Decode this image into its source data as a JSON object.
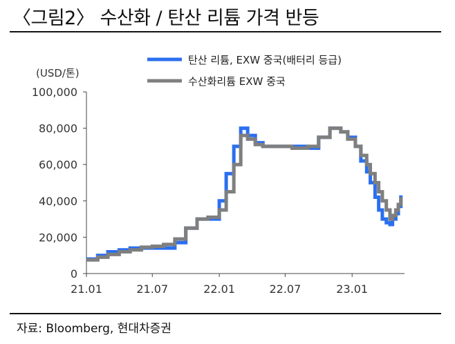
{
  "header": {
    "title": "〈그림2〉 수산화 / 탄산 리튬 가격 반등"
  },
  "footer": {
    "source": "자료: Bloomberg, 현대차증권"
  },
  "chart_data": {
    "type": "line",
    "title": "〈그림2〉 수산화 / 탄산 리튬 가격 반등",
    "ylabel": "(USD/톤)",
    "xlabel": "",
    "ylim": [
      0,
      100000
    ],
    "yticks": [
      "100,000",
      "80,000",
      "60,000",
      "40,000",
      "20,000",
      "0"
    ],
    "yticks_values": [
      100000,
      80000,
      60000,
      40000,
      20000,
      0
    ],
    "xticks": [
      "21.01",
      "21.07",
      "22.01",
      "22.07",
      "23.01"
    ],
    "grid": false,
    "legend_position": "top",
    "series": [
      {
        "name": "탄산 리튬, EXW 중국(배터리  등급)",
        "color": "#2b6ff0",
        "x": [
          "2021-01-01",
          "2021-02-01",
          "2021-03-01",
          "2021-04-01",
          "2021-05-01",
          "2021-06-01",
          "2021-07-01",
          "2021-08-01",
          "2021-09-01",
          "2021-10-01",
          "2021-11-01",
          "2021-12-01",
          "2021-12-15",
          "2022-01-01",
          "2022-01-20",
          "2022-02-10",
          "2022-03-01",
          "2022-03-20",
          "2022-04-10",
          "2022-05-01",
          "2022-06-01",
          "2022-07-01",
          "2022-07-20",
          "2022-08-15",
          "2022-09-01",
          "2022-10-01",
          "2022-11-01",
          "2022-12-01",
          "2022-12-20",
          "2023-01-10",
          "2023-01-25",
          "2023-02-10",
          "2023-02-20",
          "2023-03-05",
          "2023-03-15",
          "2023-03-25",
          "2023-04-05",
          "2023-04-15",
          "2023-04-22",
          "2023-05-01",
          "2023-05-08",
          "2023-05-15"
        ],
        "y": [
          8000,
          10000,
          12000,
          13000,
          14000,
          14000,
          14000,
          14000,
          17000,
          25000,
          30000,
          30000,
          30000,
          40000,
          55000,
          70000,
          80000,
          76000,
          72000,
          70000,
          70000,
          70000,
          70000,
          70000,
          69000,
          75000,
          80000,
          78000,
          75000,
          70000,
          62000,
          56000,
          50000,
          42000,
          35000,
          30000,
          28000,
          27000,
          30000,
          33000,
          37000,
          43000
        ]
      },
      {
        "name": "수산화리튬  EXW  중국",
        "color": "#7f7f7f",
        "x": [
          "2021-01-01",
          "2021-02-01",
          "2021-03-01",
          "2021-04-01",
          "2021-05-01",
          "2021-06-01",
          "2021-07-01",
          "2021-08-01",
          "2021-09-01",
          "2021-10-01",
          "2021-11-01",
          "2021-12-01",
          "2022-01-01",
          "2022-01-20",
          "2022-02-10",
          "2022-03-01",
          "2022-03-20",
          "2022-04-10",
          "2022-05-01",
          "2022-06-01",
          "2022-07-01",
          "2022-07-20",
          "2022-08-15",
          "2022-09-01",
          "2022-10-01",
          "2022-11-01",
          "2022-12-01",
          "2022-12-20",
          "2023-01-10",
          "2023-01-25",
          "2023-02-10",
          "2023-02-20",
          "2023-03-05",
          "2023-03-15",
          "2023-03-25",
          "2023-04-05",
          "2023-04-15",
          "2023-04-22",
          "2023-05-01",
          "2023-05-08",
          "2023-05-15"
        ],
        "y": [
          7500,
          9000,
          10500,
          12000,
          13000,
          14500,
          15000,
          16000,
          19000,
          25000,
          30000,
          31000,
          35000,
          45000,
          60000,
          76000,
          74000,
          71000,
          70000,
          70000,
          70000,
          69000,
          69000,
          70000,
          75000,
          80000,
          78000,
          74000,
          70000,
          65000,
          60000,
          55000,
          50000,
          45000,
          40000,
          35000,
          30000,
          32000,
          35000,
          38000,
          42000
        ]
      }
    ]
  }
}
